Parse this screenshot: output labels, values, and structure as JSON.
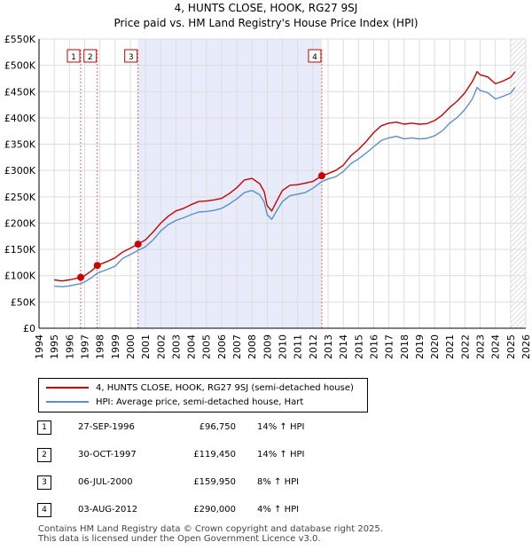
{
  "title": "4, HUNTS CLOSE, HOOK, RG27 9SJ",
  "subtitle": "Price paid vs. HM Land Registry's House Price Index (HPI)",
  "chart_data": {
    "type": "line",
    "title": "4, HUNTS CLOSE, HOOK, RG27 9SJ",
    "subtitle": "Price paid vs. HM Land Registry's House Price Index (HPI)",
    "xlim": [
      1994,
      2026
    ],
    "ylim": [
      0,
      550000
    ],
    "x_ticks": [
      1994,
      1995,
      1996,
      1997,
      1998,
      1999,
      2000,
      2001,
      2002,
      2003,
      2004,
      2005,
      2006,
      2007,
      2008,
      2009,
      2010,
      2011,
      2012,
      2013,
      2014,
      2015,
      2016,
      2017,
      2018,
      2019,
      2020,
      2021,
      2022,
      2023,
      2024,
      2025,
      2026
    ],
    "y_ticks": [
      {
        "value": 0,
        "label": "£0"
      },
      {
        "value": 50000,
        "label": "£50K"
      },
      {
        "value": 100000,
        "label": "£100K"
      },
      {
        "value": 150000,
        "label": "£150K"
      },
      {
        "value": 200000,
        "label": "£200K"
      },
      {
        "value": 250000,
        "label": "£250K"
      },
      {
        "value": 300000,
        "label": "£300K"
      },
      {
        "value": 350000,
        "label": "£350K"
      },
      {
        "value": 400000,
        "label": "£400K"
      },
      {
        "value": 450000,
        "label": "£450K"
      },
      {
        "value": 500000,
        "label": "£500K"
      },
      {
        "value": 550000,
        "label": "£550K"
      }
    ],
    "grid": true,
    "shaded_range": [
      2000.51,
      2012.59
    ],
    "hatched_from": 2025.0,
    "series": [
      {
        "name": "4, HUNTS CLOSE, HOOK, RG27 9SJ (semi-detached house)",
        "color": "#cc0000",
        "points": [
          [
            1995.0,
            92000
          ],
          [
            1995.5,
            90000
          ],
          [
            1996.0,
            92000
          ],
          [
            1996.74,
            96750
          ],
          [
            1997.0,
            100000
          ],
          [
            1997.5,
            110000
          ],
          [
            1997.83,
            119450
          ],
          [
            1998.5,
            127000
          ],
          [
            1999.0,
            134000
          ],
          [
            1999.5,
            145000
          ],
          [
            2000.0,
            152000
          ],
          [
            2000.51,
            159950
          ],
          [
            2001.0,
            168000
          ],
          [
            2001.5,
            183000
          ],
          [
            2002.0,
            200000
          ],
          [
            2002.5,
            213000
          ],
          [
            2003.0,
            223000
          ],
          [
            2003.5,
            228000
          ],
          [
            2004.0,
            235000
          ],
          [
            2004.5,
            241000
          ],
          [
            2005.0,
            242000
          ],
          [
            2005.5,
            244000
          ],
          [
            2006.0,
            247000
          ],
          [
            2006.5,
            256000
          ],
          [
            2007.0,
            267000
          ],
          [
            2007.5,
            282000
          ],
          [
            2008.0,
            285000
          ],
          [
            2008.5,
            275000
          ],
          [
            2008.8,
            260000
          ],
          [
            2009.0,
            233000
          ],
          [
            2009.3,
            223000
          ],
          [
            2009.6,
            240000
          ],
          [
            2010.0,
            262000
          ],
          [
            2010.5,
            272000
          ],
          [
            2011.0,
            273000
          ],
          [
            2011.5,
            276000
          ],
          [
            2012.0,
            279000
          ],
          [
            2012.59,
            290000
          ],
          [
            2013.0,
            294000
          ],
          [
            2013.5,
            300000
          ],
          [
            2014.0,
            310000
          ],
          [
            2014.5,
            328000
          ],
          [
            2015.0,
            340000
          ],
          [
            2015.5,
            355000
          ],
          [
            2016.0,
            372000
          ],
          [
            2016.5,
            385000
          ],
          [
            2017.0,
            390000
          ],
          [
            2017.5,
            392000
          ],
          [
            2018.0,
            388000
          ],
          [
            2018.5,
            390000
          ],
          [
            2019.0,
            388000
          ],
          [
            2019.5,
            389000
          ],
          [
            2020.0,
            395000
          ],
          [
            2020.5,
            405000
          ],
          [
            2021.0,
            420000
          ],
          [
            2021.5,
            432000
          ],
          [
            2022.0,
            448000
          ],
          [
            2022.5,
            470000
          ],
          [
            2022.8,
            488000
          ],
          [
            2023.0,
            482000
          ],
          [
            2023.5,
            478000
          ],
          [
            2024.0,
            465000
          ],
          [
            2024.5,
            470000
          ],
          [
            2025.0,
            477000
          ],
          [
            2025.3,
            488000
          ]
        ]
      },
      {
        "name": "HPI: Average price, semi-detached house, Hart",
        "color": "#5b8fc9",
        "points": [
          [
            1995.0,
            80000
          ],
          [
            1995.5,
            79000
          ],
          [
            1996.0,
            80500
          ],
          [
            1996.74,
            84900
          ],
          [
            1997.0,
            88000
          ],
          [
            1997.5,
            97000
          ],
          [
            1997.83,
            104800
          ],
          [
            1998.5,
            112000
          ],
          [
            1999.0,
            118000
          ],
          [
            1999.5,
            133000
          ],
          [
            2000.0,
            140000
          ],
          [
            2000.51,
            148100
          ],
          [
            2001.0,
            155000
          ],
          [
            2001.5,
            168000
          ],
          [
            2002.0,
            185000
          ],
          [
            2002.5,
            197000
          ],
          [
            2003.0,
            205000
          ],
          [
            2003.5,
            210000
          ],
          [
            2004.0,
            216000
          ],
          [
            2004.5,
            221000
          ],
          [
            2005.0,
            222000
          ],
          [
            2005.5,
            224000
          ],
          [
            2006.0,
            228000
          ],
          [
            2006.5,
            236000
          ],
          [
            2007.0,
            246000
          ],
          [
            2007.5,
            258000
          ],
          [
            2008.0,
            262000
          ],
          [
            2008.5,
            254000
          ],
          [
            2008.8,
            240000
          ],
          [
            2009.0,
            216000
          ],
          [
            2009.3,
            207000
          ],
          [
            2009.6,
            222000
          ],
          [
            2010.0,
            241000
          ],
          [
            2010.5,
            252000
          ],
          [
            2011.0,
            255000
          ],
          [
            2011.5,
            258000
          ],
          [
            2012.0,
            266000
          ],
          [
            2012.59,
            278800
          ],
          [
            2013.0,
            284000
          ],
          [
            2013.5,
            288000
          ],
          [
            2014.0,
            298000
          ],
          [
            2014.5,
            313000
          ],
          [
            2015.0,
            322000
          ],
          [
            2015.5,
            333000
          ],
          [
            2016.0,
            345000
          ],
          [
            2016.5,
            357000
          ],
          [
            2017.0,
            362000
          ],
          [
            2017.5,
            365000
          ],
          [
            2018.0,
            360000
          ],
          [
            2018.5,
            362000
          ],
          [
            2019.0,
            360000
          ],
          [
            2019.5,
            361000
          ],
          [
            2020.0,
            366000
          ],
          [
            2020.5,
            375000
          ],
          [
            2021.0,
            390000
          ],
          [
            2021.5,
            401000
          ],
          [
            2022.0,
            416000
          ],
          [
            2022.5,
            437000
          ],
          [
            2022.8,
            458000
          ],
          [
            2023.0,
            452000
          ],
          [
            2023.5,
            448000
          ],
          [
            2024.0,
            436000
          ],
          [
            2024.5,
            441000
          ],
          [
            2025.0,
            447000
          ],
          [
            2025.3,
            458000
          ]
        ]
      }
    ],
    "markers": [
      {
        "label": "1",
        "x": 1996.74,
        "y": 96750
      },
      {
        "label": "2",
        "x": 1997.83,
        "y": 119450
      },
      {
        "label": "3",
        "x": 2000.51,
        "y": 159950
      },
      {
        "label": "4",
        "x": 2012.59,
        "y": 290000
      }
    ]
  },
  "legend": {
    "entries": [
      {
        "label": "4, HUNTS CLOSE, HOOK, RG27 9SJ (semi-detached house)",
        "color": "#cc0000"
      },
      {
        "label": "HPI: Average price, semi-detached house, Hart",
        "color": "#5b8fc9"
      }
    ]
  },
  "sales": [
    {
      "num": "1",
      "date": "27-SEP-1996",
      "price": "£96,750",
      "hpi": "14% ↑ HPI"
    },
    {
      "num": "2",
      "date": "30-OCT-1997",
      "price": "£119,450",
      "hpi": "14% ↑ HPI"
    },
    {
      "num": "3",
      "date": "06-JUL-2000",
      "price": "£159,950",
      "hpi": "8% ↑ HPI"
    },
    {
      "num": "4",
      "date": "03-AUG-2012",
      "price": "£290,000",
      "hpi": "4% ↑ HPI"
    }
  ],
  "footer": {
    "line1": "Contains HM Land Registry data © Crown copyright and database right 2025.",
    "line2": "This data is licensed under the Open Government Licence v3.0."
  }
}
